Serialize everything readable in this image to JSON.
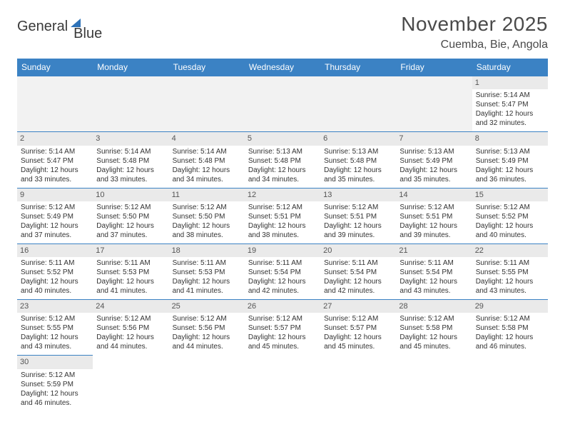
{
  "logo": {
    "text1": "General",
    "text2": "Blue"
  },
  "header": {
    "month_title": "November 2025",
    "location": "Cuemba, Bie, Angola"
  },
  "colors": {
    "header_bg": "#3b82c4",
    "header_text": "#ffffff",
    "daynum_bg": "#eaeaea",
    "border": "#3b82c4",
    "text": "#333333",
    "title_text": "#4a4a4a"
  },
  "weekdays": [
    "Sunday",
    "Monday",
    "Tuesday",
    "Wednesday",
    "Thursday",
    "Friday",
    "Saturday"
  ],
  "days": {
    "1": {
      "sunrise": "5:14 AM",
      "sunset": "5:47 PM",
      "daylight": "12 hours and 32 minutes."
    },
    "2": {
      "sunrise": "5:14 AM",
      "sunset": "5:47 PM",
      "daylight": "12 hours and 33 minutes."
    },
    "3": {
      "sunrise": "5:14 AM",
      "sunset": "5:48 PM",
      "daylight": "12 hours and 33 minutes."
    },
    "4": {
      "sunrise": "5:14 AM",
      "sunset": "5:48 PM",
      "daylight": "12 hours and 34 minutes."
    },
    "5": {
      "sunrise": "5:13 AM",
      "sunset": "5:48 PM",
      "daylight": "12 hours and 34 minutes."
    },
    "6": {
      "sunrise": "5:13 AM",
      "sunset": "5:48 PM",
      "daylight": "12 hours and 35 minutes."
    },
    "7": {
      "sunrise": "5:13 AM",
      "sunset": "5:49 PM",
      "daylight": "12 hours and 35 minutes."
    },
    "8": {
      "sunrise": "5:13 AM",
      "sunset": "5:49 PM",
      "daylight": "12 hours and 36 minutes."
    },
    "9": {
      "sunrise": "5:12 AM",
      "sunset": "5:49 PM",
      "daylight": "12 hours and 37 minutes."
    },
    "10": {
      "sunrise": "5:12 AM",
      "sunset": "5:50 PM",
      "daylight": "12 hours and 37 minutes."
    },
    "11": {
      "sunrise": "5:12 AM",
      "sunset": "5:50 PM",
      "daylight": "12 hours and 38 minutes."
    },
    "12": {
      "sunrise": "5:12 AM",
      "sunset": "5:51 PM",
      "daylight": "12 hours and 38 minutes."
    },
    "13": {
      "sunrise": "5:12 AM",
      "sunset": "5:51 PM",
      "daylight": "12 hours and 39 minutes."
    },
    "14": {
      "sunrise": "5:12 AM",
      "sunset": "5:51 PM",
      "daylight": "12 hours and 39 minutes."
    },
    "15": {
      "sunrise": "5:12 AM",
      "sunset": "5:52 PM",
      "daylight": "12 hours and 40 minutes."
    },
    "16": {
      "sunrise": "5:11 AM",
      "sunset": "5:52 PM",
      "daylight": "12 hours and 40 minutes."
    },
    "17": {
      "sunrise": "5:11 AM",
      "sunset": "5:53 PM",
      "daylight": "12 hours and 41 minutes."
    },
    "18": {
      "sunrise": "5:11 AM",
      "sunset": "5:53 PM",
      "daylight": "12 hours and 41 minutes."
    },
    "19": {
      "sunrise": "5:11 AM",
      "sunset": "5:54 PM",
      "daylight": "12 hours and 42 minutes."
    },
    "20": {
      "sunrise": "5:11 AM",
      "sunset": "5:54 PM",
      "daylight": "12 hours and 42 minutes."
    },
    "21": {
      "sunrise": "5:11 AM",
      "sunset": "5:54 PM",
      "daylight": "12 hours and 43 minutes."
    },
    "22": {
      "sunrise": "5:11 AM",
      "sunset": "5:55 PM",
      "daylight": "12 hours and 43 minutes."
    },
    "23": {
      "sunrise": "5:12 AM",
      "sunset": "5:55 PM",
      "daylight": "12 hours and 43 minutes."
    },
    "24": {
      "sunrise": "5:12 AM",
      "sunset": "5:56 PM",
      "daylight": "12 hours and 44 minutes."
    },
    "25": {
      "sunrise": "5:12 AM",
      "sunset": "5:56 PM",
      "daylight": "12 hours and 44 minutes."
    },
    "26": {
      "sunrise": "5:12 AM",
      "sunset": "5:57 PM",
      "daylight": "12 hours and 45 minutes."
    },
    "27": {
      "sunrise": "5:12 AM",
      "sunset": "5:57 PM",
      "daylight": "12 hours and 45 minutes."
    },
    "28": {
      "sunrise": "5:12 AM",
      "sunset": "5:58 PM",
      "daylight": "12 hours and 45 minutes."
    },
    "29": {
      "sunrise": "5:12 AM",
      "sunset": "5:58 PM",
      "daylight": "12 hours and 46 minutes."
    },
    "30": {
      "sunrise": "5:12 AM",
      "sunset": "5:59 PM",
      "daylight": "12 hours and 46 minutes."
    }
  },
  "layout": {
    "first_weekday_index": 6,
    "num_days": 30,
    "labels": {
      "sunrise": "Sunrise:",
      "sunset": "Sunset:",
      "daylight": "Daylight:"
    }
  }
}
